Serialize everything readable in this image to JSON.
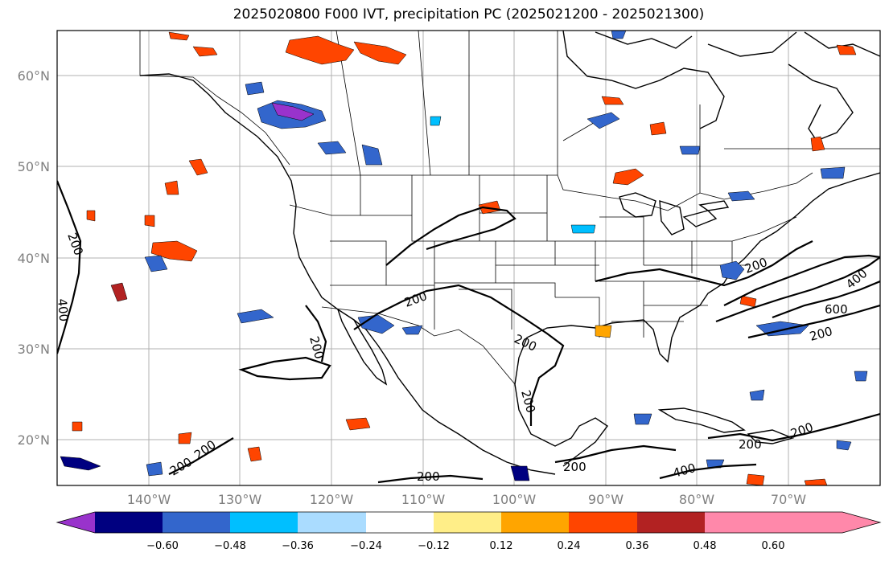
{
  "title": "2025020800 F000 IVT, precipitation PC (2025021200 - 2025021300)",
  "map": {
    "lon_range": [
      -150,
      -60
    ],
    "lat_range": [
      15,
      65
    ],
    "lat_labels": [
      "20°N",
      "30°N",
      "40°N",
      "50°N",
      "60°N"
    ],
    "lon_labels": [
      "140°W",
      "130°W",
      "120°W",
      "110°W",
      "100°W",
      "90°W",
      "80°W",
      "70°W"
    ],
    "gridlines": true
  },
  "ivt_contours": {
    "color": "#000000",
    "labels": [
      "200",
      "200",
      "200",
      "200",
      "200",
      "200",
      "200",
      "200",
      "200",
      "200",
      "200",
      "200",
      "200",
      "400",
      "400",
      "400",
      "600"
    ]
  },
  "colorbar": {
    "extend": "both",
    "tick_labels": [
      "−0.60",
      "−0.48",
      "−0.36",
      "−0.24",
      "−0.12",
      "0.12",
      "0.24",
      "0.36",
      "0.48",
      "0.60"
    ],
    "colors": [
      "#9933cc",
      "#000080",
      "#3366cc",
      "#00bfff",
      "#aadcff",
      "#ffffff",
      "#ffee88",
      "#ffa500",
      "#ff4500",
      "#b22222",
      "#ff88aa"
    ]
  }
}
